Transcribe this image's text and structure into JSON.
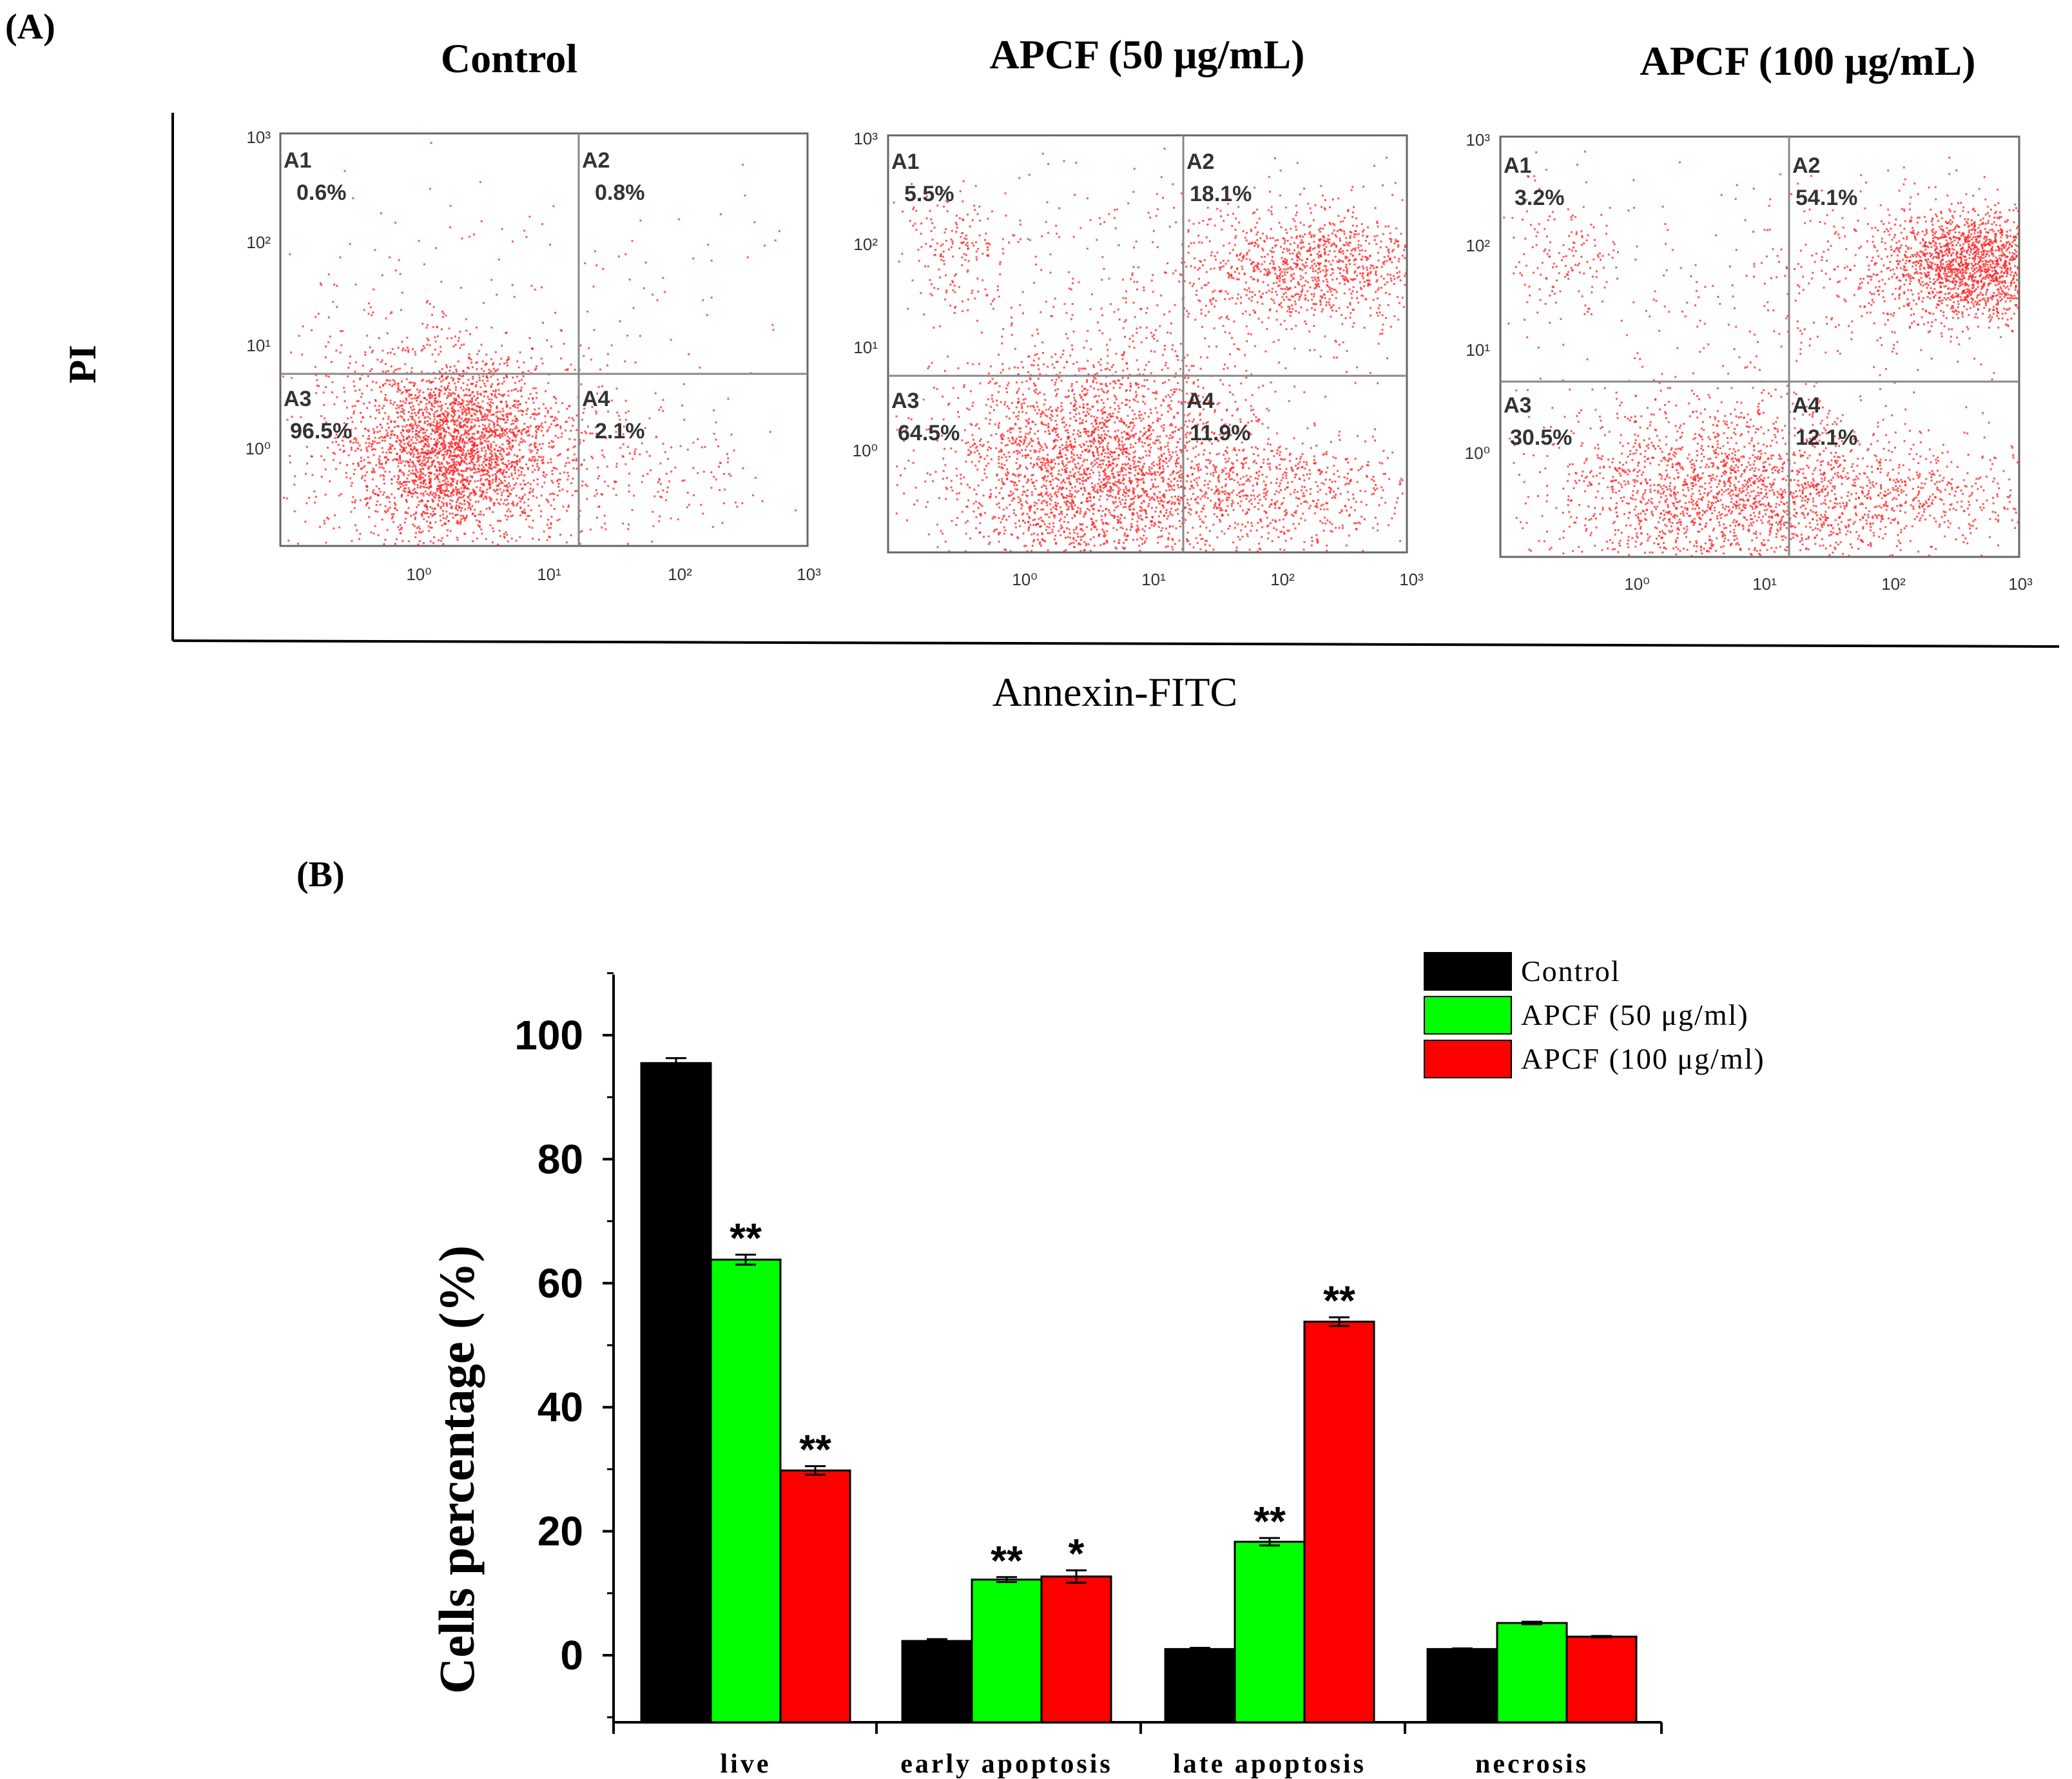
{
  "panel_a": {
    "label": "(A)",
    "y_axis_label": "PI",
    "x_axis_label": "Annexin-FITC",
    "tick_labels": [
      "10⁰",
      "10¹",
      "10²",
      "10³"
    ],
    "plots": [
      {
        "title": "Control",
        "quadrants": [
          {
            "name": "A1",
            "value": "0.6%"
          },
          {
            "name": "A2",
            "value": "0.8%"
          },
          {
            "name": "A3",
            "value": "96.5%"
          },
          {
            "name": "A4",
            "value": "2.1%"
          }
        ]
      },
      {
        "title": "APCF (50 μg/mL)",
        "quadrants": [
          {
            "name": "A1",
            "value": "5.5%"
          },
          {
            "name": "A2",
            "value": "18.1%"
          },
          {
            "name": "A3",
            "value": "64.5%"
          },
          {
            "name": "A4",
            "value": "11.9%"
          }
        ]
      },
      {
        "title": "APCF (100 μg/mL)",
        "quadrants": [
          {
            "name": "A1",
            "value": "3.2%"
          },
          {
            "name": "A2",
            "value": "54.1%"
          },
          {
            "name": "A3",
            "value": "30.5%"
          },
          {
            "name": "A4",
            "value": "12.1%"
          }
        ]
      }
    ]
  },
  "panel_b": {
    "label": "(B)"
  },
  "colors": {
    "control": "#000000",
    "apcf50": "#00ff00",
    "apcf100": "#ff0000",
    "dots": "#ff2020"
  },
  "chart_data": {
    "type": "bar",
    "title": "",
    "xlabel": "",
    "ylabel": "Cells percentage (%)",
    "ylim": [
      -10,
      110
    ],
    "yticks": [
      0,
      20,
      40,
      60,
      80,
      100
    ],
    "categories": [
      "live",
      "early apoptosis",
      "late apoptosis",
      "necrosis"
    ],
    "series": [
      {
        "name": "Control",
        "values": [
          95.5,
          2.3,
          1.0,
          1.0
        ],
        "errors": [
          0.8,
          0.3,
          0.2,
          0.1
        ],
        "marks": [
          "",
          "",
          "",
          ""
        ]
      },
      {
        "name": "APCF (50 μg/ml)",
        "values": [
          63.8,
          12.2,
          18.3,
          5.2
        ],
        "errors": [
          0.8,
          0.4,
          0.6,
          0.2
        ],
        "marks": [
          "**",
          "**",
          "**",
          ""
        ]
      },
      {
        "name": "APCF (100 μg/ml)",
        "values": [
          29.8,
          12.7,
          53.8,
          3.0
        ],
        "errors": [
          0.7,
          1.0,
          0.7,
          0.1
        ],
        "marks": [
          "**",
          "*",
          "**",
          ""
        ]
      }
    ],
    "legend_position": "top-right"
  }
}
